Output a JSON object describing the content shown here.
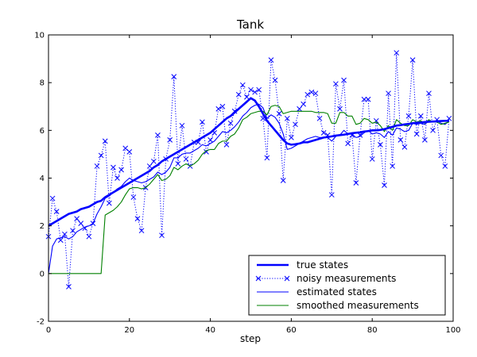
{
  "chart_data": {
    "type": "line",
    "title": "Tank",
    "xlabel": "step",
    "ylabel": "",
    "xlim": [
      0,
      100
    ],
    "ylim": [
      -2,
      10
    ],
    "xticks": [
      0,
      20,
      40,
      60,
      80,
      100
    ],
    "yticks": [
      -2,
      0,
      2,
      4,
      6,
      8,
      10
    ],
    "grid": false,
    "legend": "lower-right",
    "series": [
      {
        "name": "true states",
        "color": "#0000ff",
        "style": "thick-solid",
        "values": [
          2.0,
          2.1,
          2.2,
          2.3,
          2.4,
          2.5,
          2.55,
          2.6,
          2.7,
          2.75,
          2.8,
          2.9,
          3.0,
          3.05,
          3.2,
          3.3,
          3.4,
          3.5,
          3.6,
          3.7,
          3.8,
          3.9,
          4.0,
          4.1,
          4.2,
          4.3,
          4.45,
          4.55,
          4.7,
          4.8,
          4.9,
          5.0,
          5.1,
          5.2,
          5.3,
          5.4,
          5.5,
          5.6,
          5.7,
          5.8,
          5.9,
          6.05,
          6.2,
          6.35,
          6.5,
          6.6,
          6.75,
          6.9,
          7.05,
          7.2,
          7.35,
          7.25,
          7.0,
          6.7,
          6.4,
          6.2,
          6.0,
          5.8,
          5.6,
          5.45,
          5.4,
          5.42,
          5.45,
          5.5,
          5.5,
          5.55,
          5.6,
          5.65,
          5.7,
          5.72,
          5.75,
          5.78,
          5.8,
          5.82,
          5.85,
          5.88,
          5.9,
          5.92,
          5.95,
          5.97,
          6.0,
          6.0,
          6.02,
          6.05,
          6.1,
          6.15,
          6.2,
          6.22,
          6.25,
          6.27,
          6.3,
          6.32,
          6.33,
          6.35,
          6.36,
          6.37,
          6.38,
          6.39,
          6.4,
          6.4
        ]
      },
      {
        "name": "noisy measurements",
        "color": "#0000ff",
        "style": "dotted-x",
        "values": [
          1.55,
          3.15,
          2.6,
          1.4,
          1.65,
          -0.55,
          1.8,
          2.3,
          2.1,
          1.9,
          1.55,
          2.1,
          4.5,
          4.95,
          5.55,
          2.95,
          4.45,
          4.0,
          4.35,
          5.25,
          5.1,
          3.2,
          2.3,
          1.8,
          3.6,
          4.5,
          4.7,
          5.8,
          1.6,
          4.8,
          5.6,
          8.25,
          4.6,
          6.2,
          4.8,
          4.5,
          5.5,
          5.5,
          6.35,
          5.1,
          5.6,
          5.9,
          6.9,
          7.0,
          5.4,
          6.3,
          6.8,
          7.5,
          7.9,
          7.4,
          7.7,
          7.6,
          7.7,
          6.5,
          4.85,
          8.95,
          8.1,
          6.7,
          3.9,
          6.5,
          5.7,
          6.25,
          6.9,
          7.1,
          7.5,
          7.6,
          7.55,
          6.5,
          5.9,
          5.8,
          3.3,
          7.95,
          6.9,
          8.1,
          5.45,
          5.8,
          3.8,
          5.8,
          7.3,
          7.3,
          4.8,
          6.4,
          5.4,
          3.7,
          7.55,
          4.5,
          9.25,
          5.6,
          5.3,
          6.6,
          8.95,
          5.85,
          6.6,
          5.6,
          7.55,
          6.0,
          6.45,
          4.95,
          4.5,
          6.5
        ]
      },
      {
        "name": "estimated states",
        "color": "#0000ff",
        "style": "thin-solid",
        "values": [
          0.0,
          1.15,
          1.45,
          1.5,
          1.55,
          1.45,
          1.55,
          1.75,
          1.85,
          1.95,
          2.0,
          2.1,
          2.5,
          2.8,
          3.15,
          3.25,
          3.4,
          3.55,
          3.65,
          3.85,
          4.0,
          3.9,
          3.85,
          3.8,
          3.85,
          3.95,
          4.05,
          4.25,
          4.15,
          4.25,
          4.45,
          4.85,
          4.85,
          5.0,
          5.05,
          5.05,
          5.15,
          5.25,
          5.4,
          5.35,
          5.45,
          5.55,
          5.75,
          5.95,
          5.9,
          6.0,
          6.15,
          6.35,
          6.6,
          6.75,
          6.95,
          7.05,
          7.1,
          6.95,
          6.5,
          6.65,
          6.55,
          6.3,
          5.85,
          5.2,
          5.25,
          5.35,
          5.45,
          5.55,
          5.65,
          5.7,
          5.75,
          5.7,
          5.7,
          5.7,
          5.55,
          5.75,
          5.8,
          6.0,
          5.85,
          5.85,
          5.7,
          5.75,
          5.9,
          6.0,
          5.85,
          5.9,
          5.85,
          5.7,
          5.95,
          5.8,
          6.1,
          6.05,
          5.95,
          6.0,
          6.3,
          6.25,
          6.3,
          6.25,
          6.4,
          6.35,
          6.4,
          6.3,
          6.25,
          6.4
        ]
      },
      {
        "name": "smoothed measurements",
        "color": "#008000",
        "style": "thin-solid",
        "values": [
          0.0,
          0.0,
          0.0,
          0.0,
          0.0,
          0.0,
          0.0,
          0.0,
          0.0,
          0.0,
          0.0,
          0.0,
          0.0,
          0.0,
          2.45,
          2.55,
          2.65,
          2.8,
          3.0,
          3.3,
          3.55,
          3.6,
          3.6,
          3.55,
          3.6,
          3.75,
          3.95,
          4.15,
          3.9,
          3.95,
          4.1,
          4.45,
          4.35,
          4.5,
          4.6,
          4.5,
          4.6,
          4.75,
          5.0,
          5.15,
          5.2,
          5.2,
          5.45,
          5.55,
          5.55,
          5.75,
          5.85,
          6.1,
          6.45,
          6.55,
          6.7,
          6.75,
          6.8,
          6.8,
          6.65,
          7.0,
          7.05,
          7.0,
          6.7,
          6.75,
          6.8,
          6.8,
          6.8,
          6.8,
          6.8,
          6.8,
          6.75,
          6.75,
          6.75,
          6.7,
          6.3,
          6.3,
          6.75,
          6.75,
          6.6,
          6.6,
          6.25,
          6.3,
          6.5,
          6.45,
          6.3,
          6.35,
          6.2,
          5.95,
          6.2,
          6.0,
          6.45,
          6.3,
          6.2,
          6.2,
          6.45,
          6.35,
          6.4,
          6.3,
          6.45,
          6.35,
          6.35,
          6.25,
          6.3,
          6.35
        ]
      }
    ]
  }
}
